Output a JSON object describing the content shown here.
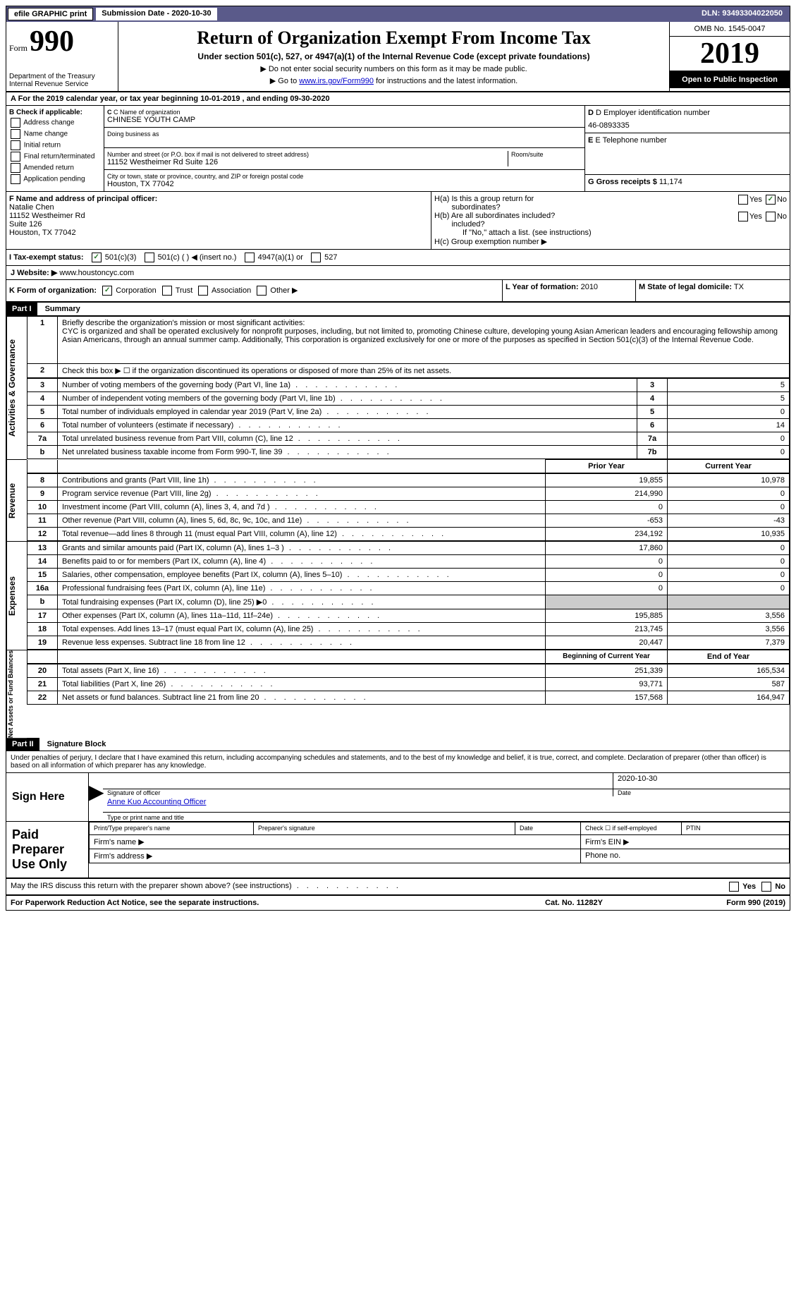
{
  "top_bar": {
    "efile": "efile GRAPHIC print",
    "submission": "Submission Date - 2020-10-30",
    "dln": "DLN: 93493304022050"
  },
  "header": {
    "form_label": "Form",
    "form_number": "990",
    "dept": "Department of the Treasury\nInternal Revenue Service",
    "title": "Return of Organization Exempt From Income Tax",
    "subtitle": "Under section 501(c), 527, or 4947(a)(1) of the Internal Revenue Code (except private foundations)",
    "note1": "▶ Do not enter social security numbers on this form as it may be made public.",
    "note2_pre": "▶ Go to ",
    "note2_link": "www.irs.gov/Form990",
    "note2_post": " for instructions and the latest information.",
    "omb": "OMB No. 1545-0047",
    "year": "2019",
    "inspect": "Open to Public Inspection"
  },
  "row_a": "A  For the 2019 calendar year, or tax year beginning 10-01-2019   , and ending 09-30-2020",
  "section_b": {
    "label": "B Check if applicable:",
    "items": [
      "Address change",
      "Name change",
      "Initial return",
      "Final return/terminated",
      "Amended return",
      "Application pending"
    ]
  },
  "section_c": {
    "name_label": "C Name of organization",
    "name_value": "CHINESE YOUTH CAMP",
    "dba_label": "Doing business as",
    "dba_value": "",
    "street_label": "Number and street (or P.O. box if mail is not delivered to street address)",
    "street_value": "11152 Westheimer Rd Suite 126",
    "room_label": "Room/suite",
    "city_label": "City or town, state or province, country, and ZIP or foreign postal code",
    "city_value": "Houston, TX  77042"
  },
  "section_d": {
    "ein_label": "D Employer identification number",
    "ein_value": "46-0893335",
    "phone_label": "E Telephone number",
    "phone_value": "",
    "receipts_label": "G Gross receipts $",
    "receipts_value": "11,174"
  },
  "section_f": {
    "label": "F Name and address of principal officer:",
    "name": "Natalie Chen",
    "addr1": "11152 Westheimer Rd",
    "addr2": "Suite 126",
    "addr3": "Houston, TX  77042"
  },
  "section_h": {
    "ha_label": "H(a)  Is this a group return for",
    "ha_sub": "subordinates?",
    "hb_label": "H(b)  Are all subordinates included?",
    "hb_note": "If \"No,\" attach a list. (see instructions)",
    "hc_label": "H(c)  Group exemption number ▶",
    "yes": "Yes",
    "no": "No"
  },
  "section_i": {
    "label": "I  Tax-exempt status:",
    "opt1": "501(c)(3)",
    "opt2": "501(c) (  ) ◀ (insert no.)",
    "opt3": "4947(a)(1) or",
    "opt4": "527"
  },
  "section_j": {
    "label": "J  Website: ▶",
    "value": "www.houstoncyc.com"
  },
  "section_k": {
    "label": "K Form of organization:",
    "opts": [
      "Corporation",
      "Trust",
      "Association",
      "Other ▶"
    ]
  },
  "section_l": {
    "label": "L Year of formation:",
    "value": "2010"
  },
  "section_m": {
    "label": "M State of legal domicile:",
    "value": "TX"
  },
  "part1": {
    "header": "Part I",
    "title": "Summary",
    "mission_label": "Briefly describe the organization's mission or most significant activities:",
    "mission": "CYC is organized and shall be operated exclusively for nonprofit purposes, including, but not limited to, promoting Chinese culture, developing young Asian American leaders and encouraging fellowship among Asian Americans, through an annual summer camp. Additionally, This corporation is organized exclusively for one or more of the purposes as specified in Section 501(c)(3) of the Internal Revenue Code.",
    "line2": "Check this box ▶ ☐ if the organization discontinued its operations or disposed of more than 25% of its net assets.",
    "activities_label": "Activities & Governance",
    "rows_ag": [
      {
        "n": "3",
        "label": "Number of voting members of the governing body (Part VI, line 1a)",
        "ref": "3",
        "val": "5"
      },
      {
        "n": "4",
        "label": "Number of independent voting members of the governing body (Part VI, line 1b)",
        "ref": "4",
        "val": "5"
      },
      {
        "n": "5",
        "label": "Total number of individuals employed in calendar year 2019 (Part V, line 2a)",
        "ref": "5",
        "val": "0"
      },
      {
        "n": "6",
        "label": "Total number of volunteers (estimate if necessary)",
        "ref": "6",
        "val": "14"
      },
      {
        "n": "7a",
        "label": "Total unrelated business revenue from Part VIII, column (C), line 12",
        "ref": "7a",
        "val": "0"
      },
      {
        "n": "b",
        "label": "Net unrelated business taxable income from Form 990-T, line 39",
        "ref": "7b",
        "val": "0"
      }
    ],
    "revenue_label": "Revenue",
    "prior_year": "Prior Year",
    "current_year": "Current Year",
    "rows_rev": [
      {
        "n": "8",
        "label": "Contributions and grants (Part VIII, line 1h)",
        "py": "19,855",
        "cy": "10,978"
      },
      {
        "n": "9",
        "label": "Program service revenue (Part VIII, line 2g)",
        "py": "214,990",
        "cy": "0"
      },
      {
        "n": "10",
        "label": "Investment income (Part VIII, column (A), lines 3, 4, and 7d )",
        "py": "0",
        "cy": "0"
      },
      {
        "n": "11",
        "label": "Other revenue (Part VIII, column (A), lines 5, 6d, 8c, 9c, 10c, and 11e)",
        "py": "-653",
        "cy": "-43"
      },
      {
        "n": "12",
        "label": "Total revenue—add lines 8 through 11 (must equal Part VIII, column (A), line 12)",
        "py": "234,192",
        "cy": "10,935"
      }
    ],
    "expenses_label": "Expenses",
    "rows_exp": [
      {
        "n": "13",
        "label": "Grants and similar amounts paid (Part IX, column (A), lines 1–3 )",
        "py": "17,860",
        "cy": "0"
      },
      {
        "n": "14",
        "label": "Benefits paid to or for members (Part IX, column (A), line 4)",
        "py": "0",
        "cy": "0"
      },
      {
        "n": "15",
        "label": "Salaries, other compensation, employee benefits (Part IX, column (A), lines 5–10)",
        "py": "0",
        "cy": "0"
      },
      {
        "n": "16a",
        "label": "Professional fundraising fees (Part IX, column (A), line 11e)",
        "py": "0",
        "cy": "0"
      },
      {
        "n": "b",
        "label": "Total fundraising expenses (Part IX, column (D), line 25) ▶0",
        "py": "shaded",
        "cy": "shaded"
      },
      {
        "n": "17",
        "label": "Other expenses (Part IX, column (A), lines 11a–11d, 11f–24e)",
        "py": "195,885",
        "cy": "3,556"
      },
      {
        "n": "18",
        "label": "Total expenses. Add lines 13–17 (must equal Part IX, column (A), line 25)",
        "py": "213,745",
        "cy": "3,556"
      },
      {
        "n": "19",
        "label": "Revenue less expenses. Subtract line 18 from line 12",
        "py": "20,447",
        "cy": "7,379"
      }
    ],
    "netassets_label": "Net Assets or Fund Balances",
    "begin_year": "Beginning of Current Year",
    "end_year": "End of Year",
    "rows_na": [
      {
        "n": "20",
        "label": "Total assets (Part X, line 16)",
        "py": "251,339",
        "cy": "165,534"
      },
      {
        "n": "21",
        "label": "Total liabilities (Part X, line 26)",
        "py": "93,771",
        "cy": "587"
      },
      {
        "n": "22",
        "label": "Net assets or fund balances. Subtract line 21 from line 20",
        "py": "157,568",
        "cy": "164,947"
      }
    ]
  },
  "part2": {
    "header": "Part II",
    "title": "Signature Block",
    "declaration": "Under penalties of perjury, I declare that I have examined this return, including accompanying schedules and statements, and to the best of my knowledge and belief, it is true, correct, and complete. Declaration of preparer (other than officer) is based on all information of which preparer has any knowledge.",
    "sign_here": "Sign Here",
    "sig_officer": "Signature of officer",
    "sig_date_label": "Date",
    "sig_date": "2020-10-30",
    "officer_name": "Anne Kuo Accounting Officer",
    "type_name": "Type or print name and title",
    "paid_prep": "Paid Preparer Use Only",
    "prep_name": "Print/Type preparer's name",
    "prep_sig": "Preparer's signature",
    "date": "Date",
    "check_self": "Check ☐ if self-employed",
    "ptin": "PTIN",
    "firm_name": "Firm's name   ▶",
    "firm_ein": "Firm's EIN ▶",
    "firm_addr": "Firm's address ▶",
    "phone": "Phone no.",
    "may_irs": "May the IRS discuss this return with the preparer shown above? (see instructions)"
  },
  "footer": {
    "paperwork": "For Paperwork Reduction Act Notice, see the separate instructions.",
    "cat": "Cat. No. 11282Y",
    "form": "Form 990 (2019)"
  }
}
